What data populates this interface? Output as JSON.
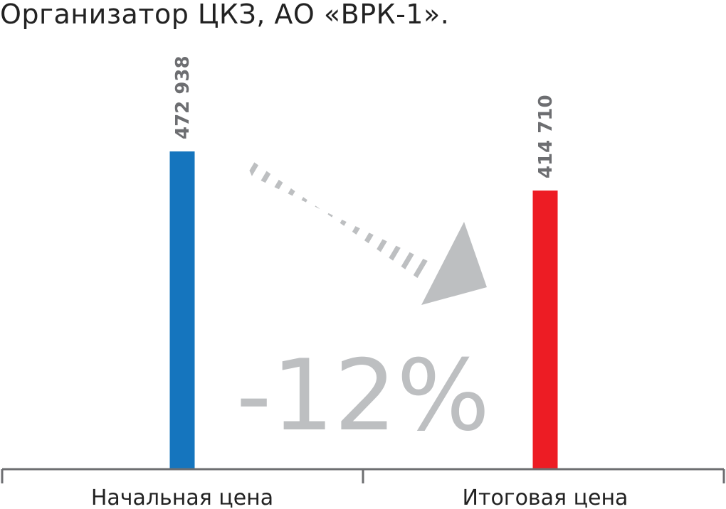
{
  "title": "Организатор ЦКЗ, АО «ВРК-1».",
  "chart_data": {
    "type": "bar",
    "categories": [
      "Начальная цена",
      "Итоговая цена"
    ],
    "values": [
      472938,
      414710
    ],
    "value_labels": [
      "472 938",
      "414 710"
    ],
    "bar_colors": [
      "#1575BE",
      "#ED1C24"
    ],
    "ylim": [
      0,
      472938
    ],
    "grid": false,
    "annotation": "-12%",
    "annotation_color": "#BDBFC1"
  }
}
